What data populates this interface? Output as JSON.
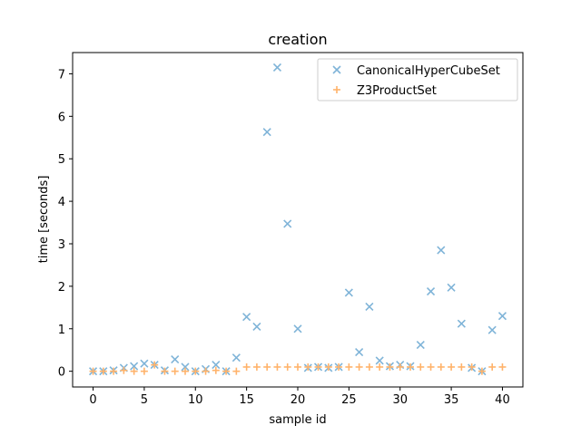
{
  "chart_data": {
    "type": "scatter",
    "title": "creation",
    "xlabel": "sample id",
    "ylabel": "time [seconds]",
    "xlim": [
      -2,
      42
    ],
    "ylim": [
      -0.37,
      7.5
    ],
    "xticks": [
      0,
      5,
      10,
      15,
      20,
      25,
      30,
      35,
      40
    ],
    "yticks": [
      0,
      1,
      2,
      3,
      4,
      5,
      6,
      7
    ],
    "grid": false,
    "legend_position": "top-right",
    "series": [
      {
        "name": "CanonicalHyperCubeSet",
        "marker": "x",
        "color": "#7fb4d8",
        "x": [
          0,
          1,
          2,
          3,
          4,
          5,
          6,
          7,
          8,
          9,
          10,
          11,
          12,
          13,
          14,
          15,
          16,
          17,
          18,
          19,
          20,
          21,
          22,
          23,
          24,
          25,
          26,
          27,
          28,
          29,
          30,
          31,
          32,
          33,
          34,
          35,
          36,
          37,
          38,
          39,
          40
        ],
        "y": [
          0.0,
          0.0,
          0.02,
          0.08,
          0.12,
          0.18,
          0.15,
          0.02,
          0.28,
          0.1,
          0.0,
          0.05,
          0.15,
          0.0,
          0.32,
          1.28,
          1.05,
          5.63,
          7.15,
          3.47,
          1.0,
          0.08,
          0.1,
          0.08,
          0.1,
          1.85,
          0.45,
          1.52,
          0.25,
          0.12,
          0.15,
          0.12,
          0.62,
          1.88,
          2.85,
          1.97,
          1.12,
          0.08,
          0.0,
          0.97,
          1.3
        ]
      },
      {
        "name": "Z3ProductSet",
        "marker": "+",
        "color": "#ffb36b",
        "x": [
          0,
          1,
          2,
          3,
          4,
          5,
          6,
          7,
          8,
          9,
          10,
          11,
          12,
          13,
          14,
          15,
          16,
          17,
          18,
          19,
          20,
          21,
          22,
          23,
          24,
          25,
          26,
          27,
          28,
          29,
          30,
          31,
          32,
          33,
          34,
          35,
          36,
          37,
          38,
          39,
          40
        ],
        "y": [
          0.0,
          0.0,
          0.0,
          0.02,
          0.0,
          0.0,
          0.15,
          0.0,
          0.0,
          0.0,
          0.0,
          0.0,
          0.02,
          0.0,
          0.0,
          0.1,
          0.1,
          0.1,
          0.1,
          0.1,
          0.1,
          0.1,
          0.1,
          0.1,
          0.1,
          0.1,
          0.1,
          0.1,
          0.1,
          0.1,
          0.1,
          0.1,
          0.1,
          0.1,
          0.1,
          0.1,
          0.1,
          0.1,
          0.0,
          0.1,
          0.1
        ]
      }
    ]
  }
}
